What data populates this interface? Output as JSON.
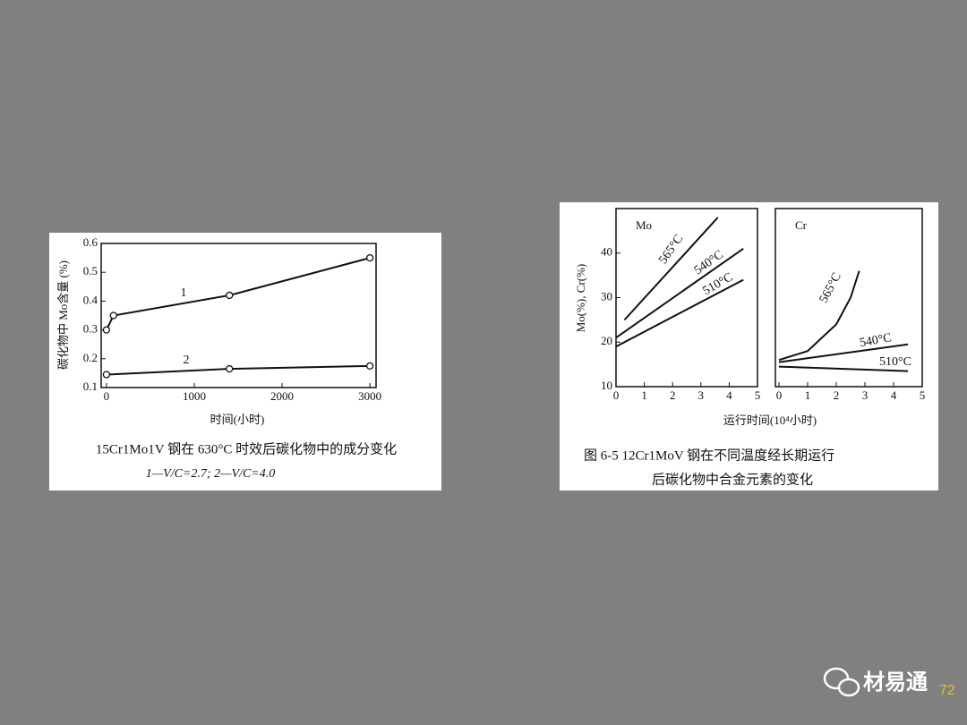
{
  "chart_data": [
    {
      "type": "line",
      "ylabel": "碳化物中 Mo含量 (%)",
      "xlabel": "时间(小时)",
      "caption": [
        "15Cr1Mo1V 钢在 630°C 时效后碳化物中的成分变化",
        "1—V/C=2.7;   2—V/C=4.0"
      ],
      "xlim": [
        -60,
        3070
      ],
      "xticks": [
        0,
        1000,
        2000,
        3000
      ],
      "ylim": [
        0.1,
        0.6
      ],
      "yticks": [
        0.1,
        0.2,
        0.3,
        0.4,
        0.5,
        0.6
      ],
      "markers": true,
      "series": [
        {
          "name": "1",
          "color": "#111111",
          "x": [
            0,
            80,
            1400,
            3000
          ],
          "values": [
            0.3,
            0.35,
            0.42,
            0.55
          ]
        },
        {
          "name": "2",
          "color": "#111111",
          "x": [
            0,
            1400,
            3000
          ],
          "values": [
            0.145,
            0.165,
            0.175
          ]
        }
      ]
    },
    {
      "type": "line",
      "title": "Mo",
      "xlim": [
        0,
        5
      ],
      "xticks": [
        0,
        1,
        2,
        3,
        4,
        5
      ],
      "ylim": [
        10,
        50
      ],
      "yticks": [
        10,
        20,
        30,
        40
      ],
      "markers": false,
      "series": [
        {
          "name": "565°C",
          "color": "#111111",
          "x": [
            0.3,
            3.6
          ],
          "values": [
            25,
            48
          ]
        },
        {
          "name": "540°C",
          "color": "#111111",
          "x": [
            0,
            4.5
          ],
          "values": [
            21,
            41
          ]
        },
        {
          "name": "510°C",
          "color": "#111111",
          "x": [
            0,
            4.5
          ],
          "values": [
            19,
            34
          ]
        }
      ]
    },
    {
      "type": "line",
      "title": "Cr",
      "xlim": [
        0,
        5
      ],
      "xticks": [
        0,
        1,
        2,
        3,
        4,
        5
      ],
      "ylim": [
        10,
        50
      ],
      "markers": false,
      "series": [
        {
          "name": "565°C",
          "color": "#111111",
          "x": [
            0,
            1,
            2,
            2.5,
            2.8
          ],
          "values": [
            16,
            18,
            24,
            30,
            36
          ]
        },
        {
          "name": "540°C",
          "color": "#111111",
          "x": [
            0,
            4.5
          ],
          "values": [
            15.5,
            19.5
          ]
        },
        {
          "name": "510°C",
          "color": "#111111",
          "x": [
            0,
            4.5
          ],
          "values": [
            14.5,
            13.5
          ]
        }
      ]
    }
  ],
  "figure_2": {
    "ylabel": "Mo(%), Cr(%)",
    "xlabel": "运行时间(10⁴小时)",
    "caption": [
      "图 6-5    12Cr1MoV 钢在不同温度经长期运行",
      "后碳化物中合金元素的变化"
    ]
  },
  "footer": {
    "brand": "材易通",
    "page": "72"
  }
}
